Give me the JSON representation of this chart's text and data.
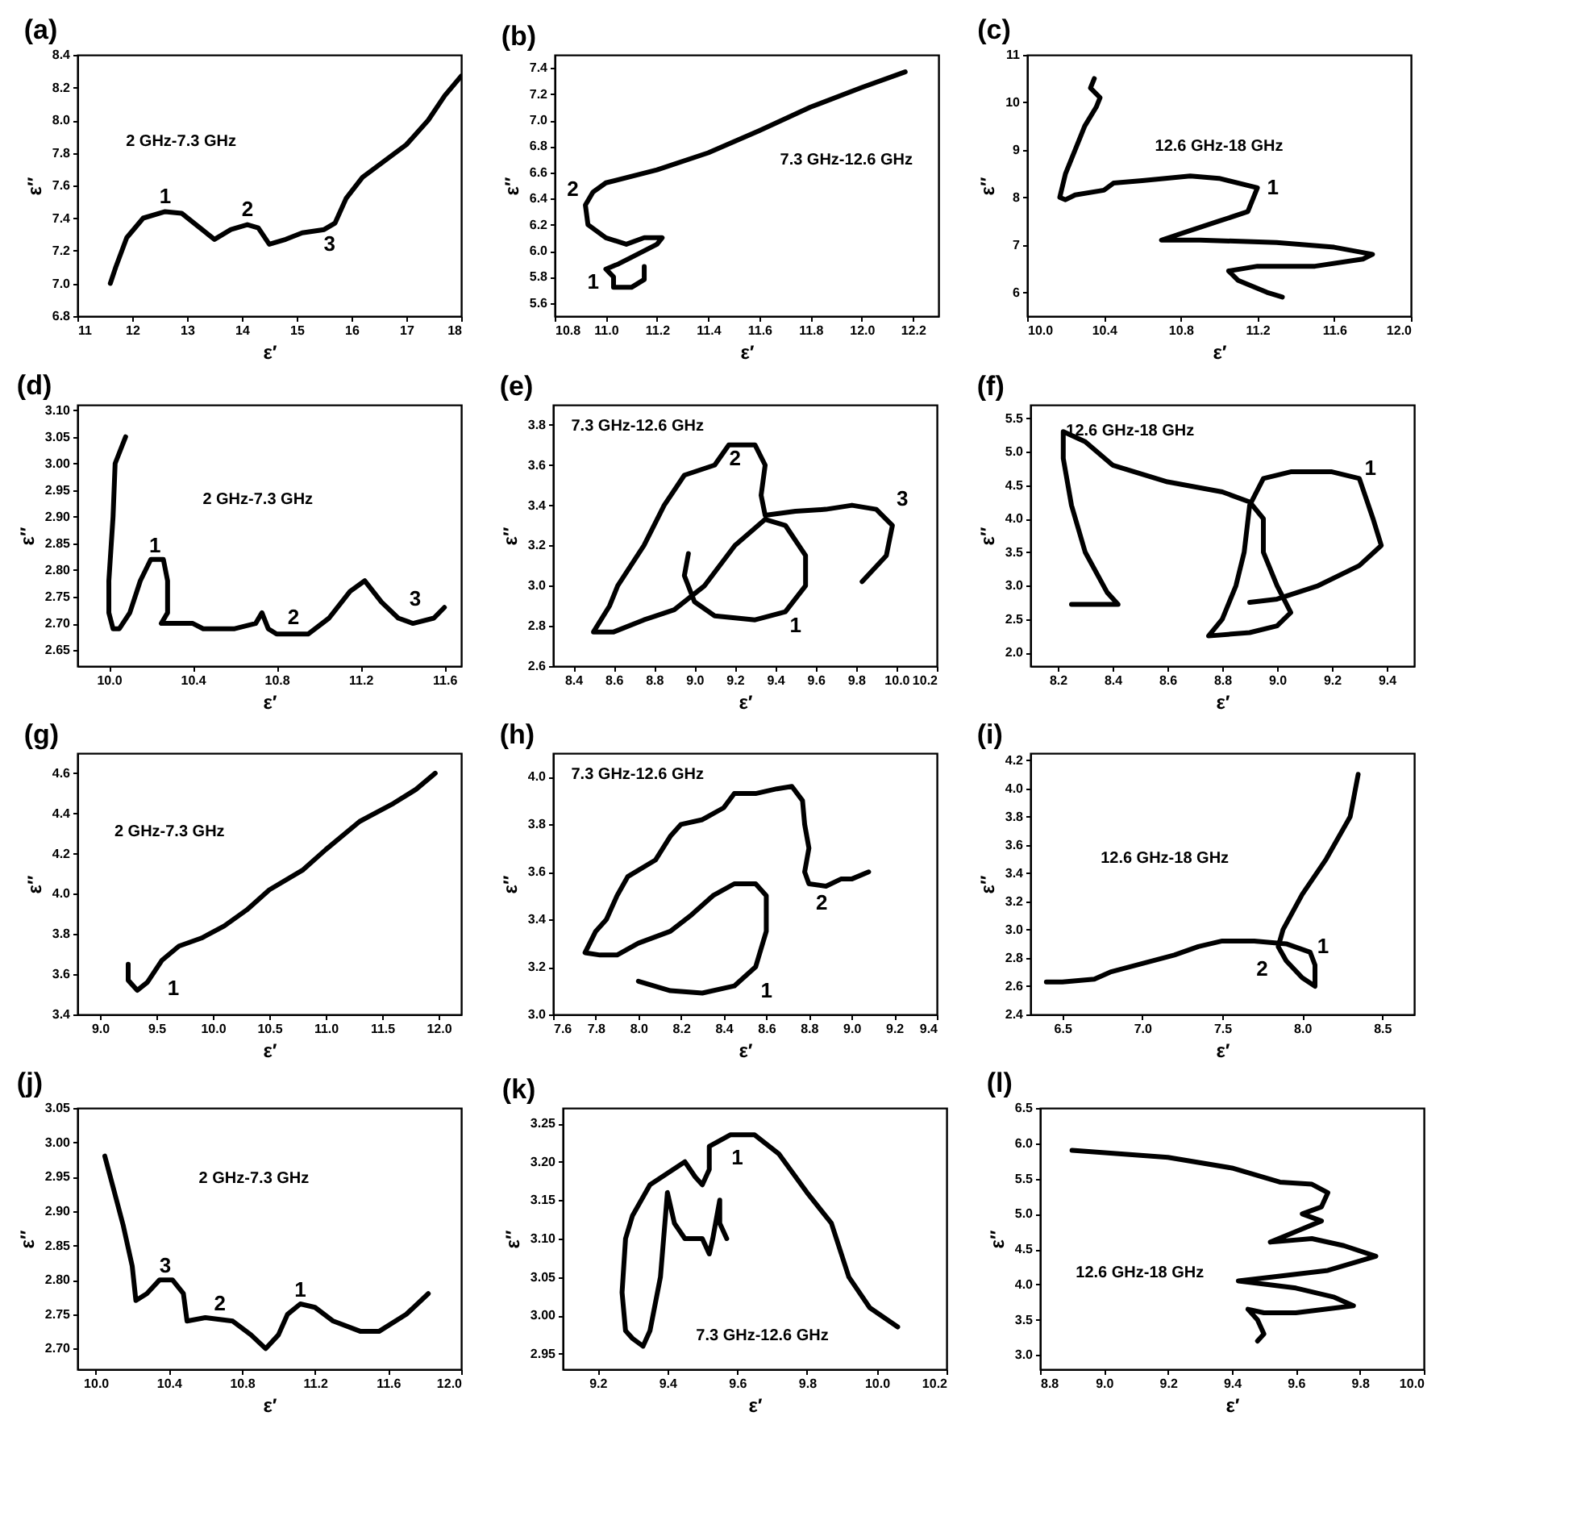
{
  "chart_data": [
    {
      "type": "line",
      "title": "(a)",
      "xlabel": "ε′",
      "ylabel": "ε′′",
      "xlim": [
        11,
        18
      ],
      "ylim": [
        6.8,
        8.4
      ],
      "xticks": [
        11,
        12,
        13,
        14,
        15,
        16,
        17,
        18
      ],
      "yticks": [
        6.8,
        {
          "value": 7,
          "label": "7.0"
        },
        7.2,
        7.4,
        7.6,
        7.8,
        {
          "value": 8,
          "label": "8.0"
        },
        8.2,
        8.4
      ],
      "x": [
        11.6,
        11.7,
        11.9,
        12.2,
        12.6,
        12.9,
        13.2,
        13.5,
        13.8,
        14.1,
        14.3,
        14.5,
        14.8,
        15.1,
        15.5,
        15.7,
        15.9,
        16.2,
        16.6,
        17.0,
        17.4,
        17.7,
        18.0
      ],
      "series": [
        {
          "color": "#000000",
          "values": [
            7.0,
            7.1,
            7.28,
            7.4,
            7.44,
            7.43,
            7.35,
            7.27,
            7.33,
            7.36,
            7.34,
            7.24,
            7.27,
            7.31,
            7.33,
            7.37,
            7.52,
            7.65,
            7.75,
            7.85,
            8.0,
            8.15,
            8.27
          ]
        }
      ],
      "annotations": [
        "2 GHz-7.3 GHz",
        "1",
        "2",
        "3"
      ]
    },
    {
      "type": "line",
      "title": "(b)",
      "xlabel": "ε′",
      "ylabel": "ε′′",
      "xlim": [
        10.8,
        12.3
      ],
      "ylim": [
        5.5,
        7.5
      ],
      "xticks": [
        10.8,
        {
          "value": 11,
          "label": "11.0"
        },
        11.2,
        11.4,
        11.6,
        11.8,
        {
          "value": 12,
          "label": "12.0"
        },
        12.2
      ],
      "yticks": [
        5.6,
        5.8,
        {
          "value": 6,
          "label": "6.0"
        },
        6.2,
        6.4,
        6.6,
        6.8,
        {
          "value": 7,
          "label": "7.0"
        },
        7.2,
        7.4
      ],
      "x": [
        11.15,
        11.15,
        11.1,
        11.03,
        11.03,
        11.0,
        11.05,
        11.1,
        11.2,
        11.22,
        11.15,
        11.08,
        11.0,
        10.93,
        10.92,
        10.95,
        11.0,
        11.2,
        11.4,
        11.6,
        11.8,
        12.0,
        12.17
      ],
      "series": [
        {
          "color": "#000000",
          "values": [
            5.88,
            5.78,
            5.72,
            5.72,
            5.8,
            5.86,
            5.9,
            5.95,
            6.05,
            6.1,
            6.1,
            6.05,
            6.1,
            6.2,
            6.35,
            6.45,
            6.52,
            6.62,
            6.75,
            6.92,
            7.1,
            7.25,
            7.37
          ]
        }
      ],
      "annotations": [
        "7.3 GHz-12.6 GHz",
        "2",
        "1"
      ]
    },
    {
      "type": "line",
      "title": "(c)",
      "xlabel": "ε′",
      "ylabel": "ε′′",
      "xlim": [
        10,
        12
      ],
      "ylim": [
        5.5,
        11
      ],
      "xticks": [
        {
          "value": 10,
          "label": "10.0"
        },
        10.4,
        10.8,
        11.2,
        11.6,
        {
          "value": 12,
          "label": "12.0"
        }
      ],
      "yticks": [
        6,
        7,
        8,
        9,
        10,
        11
      ],
      "x": [
        10.35,
        10.33,
        10.38,
        10.36,
        10.3,
        10.27,
        10.2,
        10.17,
        10.2,
        10.25,
        10.4,
        10.45,
        10.6,
        10.85,
        11.0,
        11.2,
        11.15,
        11.0,
        10.85,
        10.7,
        10.9,
        11.3,
        11.6,
        11.8,
        11.75,
        11.5,
        11.2,
        11.05,
        11.1,
        11.25,
        11.33
      ],
      "series": [
        {
          "color": "#000000",
          "values": [
            10.5,
            10.3,
            10.1,
            9.9,
            9.5,
            9.2,
            8.5,
            8.0,
            7.95,
            8.05,
            8.15,
            8.3,
            8.35,
            8.45,
            8.4,
            8.2,
            7.7,
            7.5,
            7.3,
            7.1,
            7.1,
            7.05,
            6.95,
            6.8,
            6.7,
            6.55,
            6.55,
            6.45,
            6.25,
            6.0,
            5.9
          ]
        }
      ],
      "annotations": [
        "12.6 GHz-18 GHz",
        "1"
      ]
    },
    {
      "type": "line",
      "title": "(d)",
      "xlabel": "ε′",
      "ylabel": "ε′′",
      "xlim": [
        9.85,
        11.68
      ],
      "ylim": [
        2.62,
        3.11
      ],
      "xticks": [
        {
          "value": 10,
          "label": "10.0"
        },
        10.4,
        10.8,
        11.2,
        11.6
      ],
      "yticks": [
        2.65,
        {
          "value": 2.7,
          "label": "2.70"
        },
        2.75,
        {
          "value": 2.8,
          "label": "2.80"
        },
        2.85,
        {
          "value": 2.9,
          "label": "2.90"
        },
        2.95,
        {
          "value": 3,
          "label": "3.00"
        },
        3.05,
        {
          "value": 3.1,
          "label": "3.10"
        }
      ],
      "x": [
        10.08,
        10.03,
        10.02,
        10.0,
        10.0,
        10.02,
        10.05,
        10.1,
        10.15,
        10.2,
        10.26,
        10.28,
        10.28,
        10.25,
        10.35,
        10.4,
        10.45,
        10.6,
        10.7,
        10.73,
        10.76,
        10.8,
        10.95,
        11.05,
        11.15,
        11.22,
        11.3,
        11.38,
        11.45,
        11.55,
        11.6
      ],
      "series": [
        {
          "color": "#000000",
          "values": [
            3.05,
            3.0,
            2.9,
            2.78,
            2.72,
            2.69,
            2.69,
            2.72,
            2.78,
            2.82,
            2.82,
            2.78,
            2.72,
            2.7,
            2.7,
            2.7,
            2.69,
            2.69,
            2.7,
            2.72,
            2.69,
            2.68,
            2.68,
            2.71,
            2.76,
            2.78,
            2.74,
            2.71,
            2.7,
            2.71,
            2.73
          ]
        }
      ],
      "annotations": [
        "2 GHz-7.3 GHz",
        "1",
        "2",
        "3"
      ]
    },
    {
      "type": "line",
      "title": "(e)",
      "xlabel": "ε′",
      "ylabel": "ε′′",
      "xlim": [
        8.3,
        10.2
      ],
      "ylim": [
        2.6,
        3.9
      ],
      "xticks": [
        8.4,
        8.6,
        8.8,
        {
          "value": 9,
          "label": "9.0"
        },
        9.2,
        9.4,
        9.6,
        9.8,
        {
          "value": 10,
          "label": "10.0"
        },
        10.2
      ],
      "yticks": [
        2.6,
        2.8,
        {
          "value": 3,
          "label": "3.0"
        },
        3.2,
        3.4,
        3.6,
        3.8
      ],
      "x": [
        8.97,
        8.95,
        9.0,
        9.1,
        9.3,
        9.45,
        9.55,
        9.55,
        9.45,
        9.35,
        9.2,
        9.05,
        8.9,
        8.75,
        8.6,
        8.5,
        8.58,
        8.62,
        8.75,
        8.85,
        8.95,
        9.1,
        9.17,
        9.3,
        9.35,
        9.33,
        9.35,
        9.5,
        9.65,
        9.78,
        9.9,
        9.98,
        9.95,
        9.83
      ],
      "series": [
        {
          "color": "#000000",
          "values": [
            3.16,
            3.05,
            2.92,
            2.85,
            2.83,
            2.87,
            3.0,
            3.15,
            3.3,
            3.33,
            3.2,
            3.0,
            2.88,
            2.83,
            2.77,
            2.77,
            2.9,
            3.0,
            3.2,
            3.4,
            3.55,
            3.6,
            3.7,
            3.7,
            3.6,
            3.45,
            3.35,
            3.37,
            3.38,
            3.4,
            3.38,
            3.3,
            3.15,
            3.02
          ]
        }
      ],
      "annotations": [
        "7.3 GHz-12.6 GHz",
        "1",
        "2",
        "3"
      ]
    },
    {
      "type": "line",
      "title": "(f)",
      "xlabel": "ε′",
      "ylabel": "ε′′",
      "xlim": [
        8.1,
        9.5
      ],
      "ylim": [
        1.8,
        5.7
      ],
      "xticks": [
        8.2,
        8.4,
        8.6,
        8.8,
        {
          "value": 9,
          "label": "9.0"
        },
        9.2,
        9.4
      ],
      "yticks": [
        {
          "value": 2,
          "label": "2.0"
        },
        2.5,
        {
          "value": 3,
          "label": "3.0"
        },
        3.5,
        {
          "value": 4,
          "label": "4.0"
        },
        4.5,
        {
          "value": 5,
          "label": "5.0"
        },
        5.5
      ],
      "x": [
        8.25,
        8.42,
        8.38,
        8.3,
        8.25,
        8.22,
        8.22,
        8.3,
        8.4,
        8.6,
        8.8,
        8.9,
        8.95,
        8.95,
        9.0,
        9.05,
        9.0,
        8.9,
        8.75,
        8.8,
        8.85,
        8.88,
        8.9,
        8.95,
        9.05,
        9.2,
        9.3,
        9.35,
        9.38,
        9.3,
        9.15,
        9.0,
        8.9
      ],
      "series": [
        {
          "color": "#000000",
          "values": [
            2.72,
            2.72,
            2.9,
            3.5,
            4.2,
            4.9,
            5.3,
            5.15,
            4.8,
            4.55,
            4.4,
            4.25,
            4.0,
            3.5,
            3.0,
            2.6,
            2.4,
            2.3,
            2.25,
            2.5,
            3.0,
            3.5,
            4.2,
            4.6,
            4.7,
            4.7,
            4.6,
            4.0,
            3.6,
            3.3,
            3.0,
            2.8,
            2.75
          ]
        }
      ],
      "annotations": [
        "12.6 GHz-18 GHz",
        "1"
      ]
    },
    {
      "type": "line",
      "title": "(g)",
      "xlabel": "ε′",
      "ylabel": "ε′′",
      "xlim": [
        8.8,
        12.2
      ],
      "ylim": [
        3.4,
        4.7
      ],
      "xticks": [
        {
          "value": 9,
          "label": "9.0"
        },
        9.5,
        {
          "value": 10,
          "label": "10.0"
        },
        10.5,
        {
          "value": 11,
          "label": "11.0"
        },
        11.5,
        {
          "value": 12,
          "label": "12.0"
        }
      ],
      "yticks": [
        3.4,
        3.6,
        3.8,
        {
          "value": 4,
          "label": "4.0"
        },
        4.2,
        4.4,
        4.6
      ],
      "x": [
        9.25,
        9.25,
        9.33,
        9.42,
        9.55,
        9.7,
        9.9,
        10.1,
        10.3,
        10.5,
        10.8,
        11.0,
        11.3,
        11.6,
        11.8,
        11.97
      ],
      "series": [
        {
          "color": "#000000",
          "values": [
            3.65,
            3.57,
            3.52,
            3.56,
            3.67,
            3.74,
            3.78,
            3.84,
            3.92,
            4.02,
            4.12,
            4.22,
            4.36,
            4.45,
            4.52,
            4.6
          ]
        }
      ],
      "annotations": [
        "2 GHz-7.3 GHz",
        "1"
      ]
    },
    {
      "type": "line",
      "title": "(h)",
      "xlabel": "ε′",
      "ylabel": "ε′′",
      "xlim": [
        7.6,
        9.4
      ],
      "ylim": [
        3.0,
        4.1
      ],
      "xticks": [
        7.6,
        7.8,
        {
          "value": 8,
          "label": "8.0"
        },
        8.2,
        8.4,
        8.6,
        8.8,
        {
          "value": 9,
          "label": "9.0"
        },
        9.2,
        9.4
      ],
      "yticks": [
        {
          "value": 3,
          "label": "3.0"
        },
        3.2,
        3.4,
        3.6,
        3.8,
        {
          "value": 4,
          "label": "4.0"
        }
      ],
      "x": [
        9.08,
        9.0,
        8.95,
        8.88,
        8.8,
        8.78,
        8.8,
        8.78,
        8.77,
        8.72,
        8.65,
        8.55,
        8.45,
        8.4,
        8.3,
        8.2,
        8.15,
        8.08,
        7.95,
        7.9,
        7.85,
        7.8,
        7.75,
        7.82,
        7.9,
        8.0,
        8.15,
        8.25,
        8.35,
        8.45,
        8.55,
        8.6,
        8.6,
        8.55,
        8.45,
        8.3,
        8.15,
        8.0
      ],
      "series": [
        {
          "color": "#000000",
          "values": [
            3.6,
            3.57,
            3.57,
            3.54,
            3.55,
            3.6,
            3.7,
            3.8,
            3.9,
            3.96,
            3.95,
            3.93,
            3.93,
            3.87,
            3.82,
            3.8,
            3.75,
            3.65,
            3.58,
            3.5,
            3.4,
            3.35,
            3.26,
            3.25,
            3.25,
            3.3,
            3.35,
            3.42,
            3.5,
            3.55,
            3.55,
            3.5,
            3.35,
            3.2,
            3.12,
            3.09,
            3.1,
            3.14
          ]
        }
      ],
      "annotations": [
        "7.3 GHz-12.6 GHz",
        "1",
        "2"
      ]
    },
    {
      "type": "line",
      "title": "(i)",
      "xlabel": "ε′",
      "ylabel": "ε′′",
      "xlim": [
        6.3,
        8.7
      ],
      "ylim": [
        2.4,
        4.25
      ],
      "xticks": [
        6.5,
        {
          "value": 7,
          "label": "7.0"
        },
        7.5,
        {
          "value": 8,
          "label": "8.0"
        },
        8.5
      ],
      "yticks": [
        2.4,
        2.6,
        2.8,
        {
          "value": 3,
          "label": "3.0"
        },
        3.2,
        3.4,
        3.6,
        3.8,
        {
          "value": 4,
          "label": "4.0"
        },
        4.2
      ],
      "x": [
        8.35,
        8.3,
        8.15,
        8.0,
        7.88,
        7.85,
        7.9,
        8.0,
        8.08,
        8.08,
        8.05,
        7.9,
        7.7,
        7.5,
        7.35,
        7.2,
        7.0,
        6.8,
        6.7,
        6.5,
        6.4
      ],
      "series": [
        {
          "color": "#000000",
          "values": [
            4.1,
            3.8,
            3.5,
            3.25,
            3.0,
            2.88,
            2.78,
            2.66,
            2.6,
            2.75,
            2.84,
            2.9,
            2.92,
            2.92,
            2.88,
            2.82,
            2.76,
            2.7,
            2.65,
            2.63,
            2.63
          ]
        }
      ],
      "annotations": [
        "12.6 GHz-18 GHz",
        "1",
        "2"
      ]
    },
    {
      "type": "line",
      "title": "(j)",
      "xlabel": "ε′",
      "ylabel": "ε′′",
      "xlim": [
        9.9,
        12
      ],
      "ylim": [
        2.67,
        3.05
      ],
      "xticks": [
        {
          "value": 10,
          "label": "10.0"
        },
        10.4,
        10.8,
        11.2,
        11.6,
        {
          "value": 12,
          "label": "12.0"
        }
      ],
      "yticks": [
        {
          "value": 2.7,
          "label": "2.70"
        },
        2.75,
        {
          "value": 2.8,
          "label": "2.80"
        },
        2.85,
        {
          "value": 2.9,
          "label": "2.90"
        },
        2.95,
        {
          "value": 3,
          "label": "3.00"
        },
        3.05
      ],
      "x": [
        10.05,
        10.1,
        10.15,
        10.2,
        10.22,
        10.28,
        10.35,
        10.42,
        10.48,
        10.5,
        10.6,
        10.75,
        10.85,
        10.93,
        11.0,
        11.05,
        11.12,
        11.2,
        11.3,
        11.45,
        11.55,
        11.7,
        11.82
      ],
      "series": [
        {
          "color": "#000000",
          "values": [
            2.98,
            2.93,
            2.88,
            2.82,
            2.77,
            2.78,
            2.8,
            2.8,
            2.78,
            2.74,
            2.745,
            2.74,
            2.72,
            2.7,
            2.72,
            2.75,
            2.765,
            2.76,
            2.74,
            2.725,
            2.725,
            2.75,
            2.78
          ]
        }
      ],
      "annotations": [
        "2 GHz-7.3 GHz",
        "3",
        "2",
        "1"
      ]
    },
    {
      "type": "line",
      "title": "(k)",
      "xlabel": "ε′",
      "ylabel": "ε′′",
      "xlim": [
        9.1,
        10.2
      ],
      "ylim": [
        2.93,
        3.27
      ],
      "xticks": [
        9.2,
        9.4,
        9.6,
        9.8,
        {
          "value": 10,
          "label": "10.0"
        },
        10.2
      ],
      "yticks": [
        2.95,
        {
          "value": 3,
          "label": "3.00"
        },
        3.05,
        {
          "value": 3.1,
          "label": "3.10"
        },
        3.15,
        {
          "value": 3.2,
          "label": "3.20"
        },
        3.25
      ],
      "x": [
        9.57,
        9.55,
        9.55,
        9.53,
        9.52,
        9.5,
        9.45,
        9.42,
        9.4,
        9.38,
        9.35,
        9.33,
        9.3,
        9.28,
        9.27,
        9.28,
        9.3,
        9.35,
        9.4,
        9.45,
        9.48,
        9.5,
        9.52,
        9.52,
        9.58,
        9.65,
        9.72,
        9.8,
        9.87,
        9.92,
        9.98,
        10.06
      ],
      "series": [
        {
          "color": "#000000",
          "values": [
            3.1,
            3.12,
            3.15,
            3.1,
            3.08,
            3.1,
            3.1,
            3.12,
            3.16,
            3.05,
            2.98,
            2.96,
            2.97,
            2.98,
            3.03,
            3.1,
            3.13,
            3.17,
            3.185,
            3.2,
            3.18,
            3.17,
            3.19,
            3.22,
            3.235,
            3.235,
            3.21,
            3.16,
            3.12,
            3.05,
            3.01,
            2.985
          ]
        }
      ],
      "annotations": [
        "7.3 GHz-12.6 GHz",
        "1"
      ]
    },
    {
      "type": "line",
      "title": "(l)",
      "xlabel": "ε′",
      "ylabel": "ε′′",
      "xlim": [
        8.8,
        10
      ],
      "ylim": [
        2.8,
        6.5
      ],
      "xticks": [
        8.8,
        {
          "value": 9,
          "label": "9.0"
        },
        9.2,
        9.4,
        9.6,
        9.8,
        {
          "value": 10,
          "label": "10.0"
        }
      ],
      "yticks": [
        {
          "value": 3,
          "label": "3.0"
        },
        3.5,
        {
          "value": 4,
          "label": "4.0"
        },
        4.5,
        {
          "value": 5,
          "label": "5.0"
        },
        5.5,
        {
          "value": 6,
          "label": "6.0"
        },
        6.5
      ],
      "x": [
        8.9,
        9.2,
        9.4,
        9.55,
        9.65,
        9.7,
        9.68,
        9.62,
        9.68,
        9.6,
        9.52,
        9.65,
        9.75,
        9.85,
        9.7,
        9.55,
        9.42,
        9.6,
        9.72,
        9.78,
        9.6,
        9.5,
        9.45,
        9.48,
        9.5,
        9.48
      ],
      "series": [
        {
          "color": "#000000",
          "values": [
            5.9,
            5.8,
            5.65,
            5.45,
            5.42,
            5.3,
            5.1,
            5.0,
            4.9,
            4.75,
            4.6,
            4.65,
            4.55,
            4.4,
            4.2,
            4.12,
            4.05,
            3.95,
            3.82,
            3.7,
            3.6,
            3.6,
            3.65,
            3.5,
            3.3,
            3.2
          ]
        }
      ],
      "annotations": [
        "12.6 GHz-18 GHz"
      ]
    }
  ]
}
